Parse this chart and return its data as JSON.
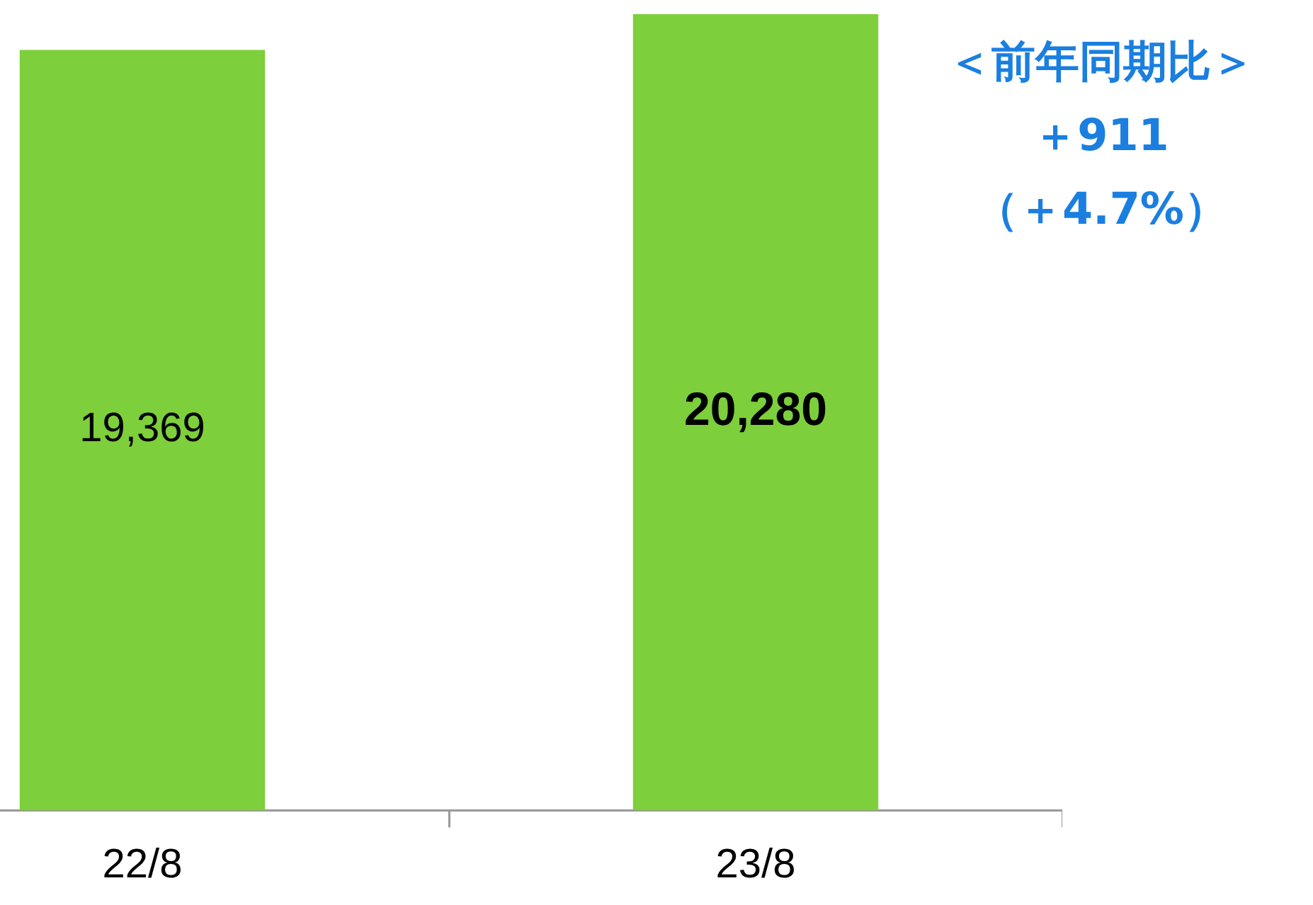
{
  "chart_data": {
    "type": "bar",
    "categories": [
      "22/8",
      "23/8"
    ],
    "values": [
      19369,
      20280
    ],
    "value_labels": [
      "19,369",
      "20,280"
    ],
    "color": "#7dcf3b",
    "annotations": [
      "＜前年同期比＞",
      "＋911",
      "（＋4.7%）"
    ]
  }
}
